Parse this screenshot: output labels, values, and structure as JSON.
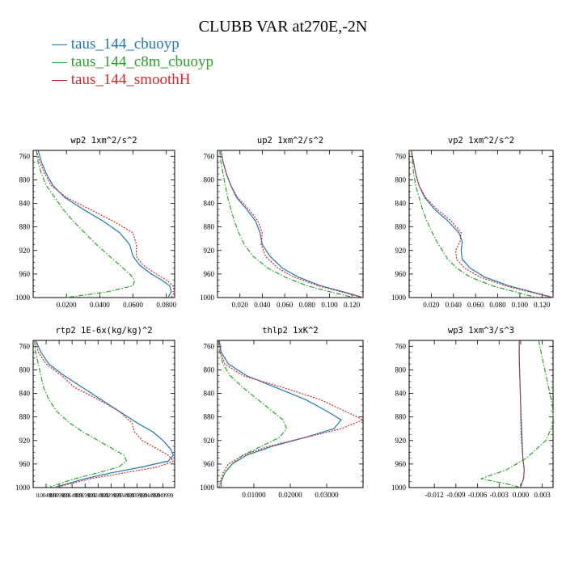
{
  "title": "CLUBB VAR at270E,-2N",
  "legend": [
    {
      "label": "taus_144_cbuoyp",
      "color": "#1f77b4",
      "dash": "solid"
    },
    {
      "label": "taus_144_c8m_cbuoyp",
      "color": "#2ca02c",
      "dash": "dashdot"
    },
    {
      "label": "taus_144_smoothH",
      "color": "#d62728",
      "dash": "dotted"
    }
  ],
  "chart_data": [
    {
      "type": "line",
      "title": "wp2  1xm^2/s^2",
      "xlim": [
        0.0,
        0.085
      ],
      "ylim": [
        1000,
        750
      ],
      "yticks": [
        760,
        800,
        840,
        880,
        920,
        960,
        1000
      ],
      "xticks": [
        0.02,
        0.04,
        0.06,
        0.08
      ],
      "xticklabels": [
        "0.0200",
        "0.0400",
        "0.0600",
        "0.0800"
      ],
      "y": [
        750,
        770,
        790,
        810,
        830,
        850,
        870,
        890,
        910,
        930,
        945,
        960,
        970,
        980,
        990,
        1000
      ],
      "series": [
        {
          "name": "taus_144_cbuoyp",
          "values": [
            0.003,
            0.005,
            0.008,
            0.012,
            0.019,
            0.03,
            0.042,
            0.052,
            0.058,
            0.06,
            0.064,
            0.071,
            0.077,
            0.082,
            0.083,
            0.081
          ]
        },
        {
          "name": "taus_144_c8m_cbuoyp",
          "values": [
            0.002,
            0.003,
            0.005,
            0.008,
            0.013,
            0.018,
            0.024,
            0.031,
            0.038,
            0.046,
            0.052,
            0.058,
            0.061,
            0.06,
            0.045,
            0.02
          ]
        },
        {
          "name": "taus_144_smoothH",
          "values": [
            0.002,
            0.004,
            0.007,
            0.011,
            0.02,
            0.034,
            0.048,
            0.06,
            0.062,
            0.062,
            0.066,
            0.074,
            0.08,
            0.084,
            0.085,
            0.083
          ]
        }
      ]
    },
    {
      "type": "line",
      "title": "up2  1xm^2/s^2",
      "xlim": [
        0.0,
        0.13
      ],
      "ylim": [
        1000,
        750
      ],
      "yticks": [
        760,
        800,
        840,
        880,
        920,
        960,
        1000
      ],
      "xticks": [
        0.02,
        0.04,
        0.06,
        0.08,
        0.1,
        0.12
      ],
      "xticklabels": [
        "0.020",
        "0.040",
        "0.060",
        "0.080",
        "0.100",
        "0.120"
      ],
      "y": [
        750,
        770,
        790,
        810,
        830,
        850,
        870,
        890,
        910,
        930,
        950,
        965,
        980,
        990,
        1000
      ],
      "series": [
        {
          "name": "taus_144_cbuoyp",
          "values": [
            0.003,
            0.005,
            0.008,
            0.012,
            0.017,
            0.026,
            0.034,
            0.038,
            0.04,
            0.047,
            0.058,
            0.072,
            0.092,
            0.112,
            0.13
          ]
        },
        {
          "name": "taus_144_c8m_cbuoyp",
          "values": [
            0.002,
            0.003,
            0.005,
            0.007,
            0.009,
            0.012,
            0.015,
            0.019,
            0.024,
            0.032,
            0.045,
            0.06,
            0.08,
            0.1,
            0.122
          ]
        },
        {
          "name": "taus_144_smoothH",
          "values": [
            0.003,
            0.005,
            0.008,
            0.012,
            0.018,
            0.028,
            0.036,
            0.04,
            0.039,
            0.043,
            0.054,
            0.068,
            0.09,
            0.11,
            0.13
          ]
        }
      ]
    },
    {
      "type": "line",
      "title": "vp2  1xm^2/s^2",
      "xlim": [
        0.0,
        0.13
      ],
      "ylim": [
        1000,
        750
      ],
      "yticks": [
        760,
        800,
        840,
        880,
        920,
        960,
        1000
      ],
      "xticks": [
        0.02,
        0.04,
        0.06,
        0.08,
        0.1,
        0.12
      ],
      "xticklabels": [
        "0.020",
        "0.040",
        "0.060",
        "0.080",
        "0.100",
        "0.120"
      ],
      "y": [
        750,
        770,
        790,
        810,
        830,
        850,
        870,
        890,
        905,
        920,
        935,
        950,
        965,
        980,
        990,
        1000
      ],
      "series": [
        {
          "name": "taus_144_cbuoyp",
          "values": [
            0.002,
            0.004,
            0.006,
            0.009,
            0.014,
            0.023,
            0.035,
            0.045,
            0.048,
            0.047,
            0.048,
            0.055,
            0.068,
            0.09,
            0.11,
            0.13
          ]
        },
        {
          "name": "taus_144_c8m_cbuoyp",
          "values": [
            0.002,
            0.003,
            0.004,
            0.006,
            0.009,
            0.012,
            0.016,
            0.021,
            0.025,
            0.03,
            0.035,
            0.043,
            0.055,
            0.075,
            0.095,
            0.115
          ]
        },
        {
          "name": "taus_144_smoothH",
          "values": [
            0.002,
            0.004,
            0.006,
            0.009,
            0.015,
            0.025,
            0.038,
            0.047,
            0.046,
            0.042,
            0.043,
            0.05,
            0.064,
            0.087,
            0.108,
            0.13
          ]
        }
      ]
    },
    {
      "type": "line",
      "title": "rtp2  1E-6x(kg/kg)^2",
      "xlim": [
        0.0,
        0.0545
      ],
      "ylim": [
        1000,
        750
      ],
      "yticks": [
        760,
        800,
        840,
        880,
        920,
        960,
        1000
      ],
      "xticks": [
        0.004999,
        0.009999,
        0.014999,
        0.019999,
        0.024999,
        0.029999,
        0.034999,
        0.039999,
        0.044999,
        0.049999
      ],
      "xticklabels": [
        "0.004999",
        "0.009999",
        "0.014999",
        "0.019999",
        "0.024999",
        "0.029999",
        "0.034999",
        "0.039999",
        "0.044999",
        "0.049999"
      ],
      "y": [
        750,
        770,
        790,
        810,
        830,
        850,
        870,
        890,
        905,
        920,
        935,
        945,
        955,
        965,
        975,
        985,
        995,
        1000
      ],
      "series": [
        {
          "name": "taus_144_cbuoyp",
          "values": [
            0.001,
            0.003,
            0.006,
            0.012,
            0.019,
            0.026,
            0.033,
            0.04,
            0.046,
            0.05,
            0.053,
            0.054,
            0.052,
            0.042,
            0.03,
            0.02,
            0.012,
            0.008
          ]
        },
        {
          "name": "taus_144_c8m_cbuoyp",
          "values": [
            0.0005,
            0.001,
            0.002,
            0.003,
            0.004,
            0.006,
            0.009,
            0.014,
            0.019,
            0.025,
            0.031,
            0.035,
            0.036,
            0.033,
            0.025,
            0.016,
            0.009,
            0.006
          ]
        },
        {
          "name": "taus_144_smoothH",
          "values": [
            0.001,
            0.002,
            0.005,
            0.011,
            0.016,
            0.025,
            0.033,
            0.038,
            0.039,
            0.042,
            0.048,
            0.052,
            0.054,
            0.048,
            0.035,
            0.022,
            0.013,
            0.009
          ]
        }
      ]
    },
    {
      "type": "line",
      "title": "thlp2  1xK^2",
      "xlim": [
        0.0,
        0.04
      ],
      "ylim": [
        1000,
        750
      ],
      "yticks": [
        760,
        800,
        840,
        880,
        920,
        960,
        1000
      ],
      "xticks": [
        0.01,
        0.02,
        0.03
      ],
      "xticklabels": [
        "0.01000",
        "0.02000",
        "0.03000"
      ],
      "y": [
        750,
        770,
        790,
        810,
        830,
        850,
        870,
        885,
        900,
        915,
        930,
        945,
        960,
        975,
        990,
        1000
      ],
      "series": [
        {
          "name": "taus_144_cbuoyp",
          "values": [
            0.0005,
            0.001,
            0.003,
            0.008,
            0.016,
            0.024,
            0.03,
            0.034,
            0.032,
            0.024,
            0.015,
            0.008,
            0.004,
            0.002,
            0.001,
            0.001
          ]
        },
        {
          "name": "taus_144_c8m_cbuoyp",
          "values": [
            0.0003,
            0.0006,
            0.0015,
            0.0035,
            0.007,
            0.011,
            0.015,
            0.018,
            0.019,
            0.017,
            0.012,
            0.007,
            0.004,
            0.002,
            0.001,
            0.001
          ]
        },
        {
          "name": "taus_144_smoothH",
          "values": [
            0.0003,
            0.0008,
            0.002,
            0.007,
            0.018,
            0.028,
            0.035,
            0.04,
            0.034,
            0.024,
            0.014,
            0.007,
            0.003,
            0.0015,
            0.0008,
            0.0005
          ]
        }
      ]
    },
    {
      "type": "line",
      "title": "wp3  1xm^3/s^3",
      "xlim": [
        -0.0155,
        0.0045
      ],
      "ylim": [
        1000,
        750
      ],
      "yticks": [
        760,
        800,
        840,
        880,
        920,
        960,
        1000
      ],
      "xticks": [
        -0.012,
        -0.009,
        -0.006,
        -0.003,
        0.0,
        0.003
      ],
      "xticklabels": [
        "-0.012",
        "-0.009",
        "-0.006",
        "-0.003",
        "0.000",
        "0.003"
      ],
      "y": [
        750,
        780,
        820,
        860,
        890,
        920,
        950,
        970,
        985,
        995,
        1000
      ],
      "series": [
        {
          "name": "taus_144_cbuoyp",
          "values": [
            -0.0002,
            -0.0002,
            -0.0001,
            0.0,
            0.0001,
            0.0002,
            0.0003,
            0.0005,
            0.0004,
            0.0001,
            0.0
          ]
        },
        {
          "name": "taus_144_c8m_cbuoyp",
          "values": [
            0.0025,
            0.003,
            0.0037,
            0.0044,
            0.0046,
            0.0035,
            0.0008,
            -0.002,
            -0.0055,
            -0.0015,
            0.0
          ]
        },
        {
          "name": "taus_144_smoothH",
          "values": [
            -0.0002,
            -0.0002,
            -0.0001,
            0.0,
            0.0,
            0.0001,
            0.0003,
            0.0005,
            0.0004,
            0.0001,
            0.0
          ]
        }
      ]
    }
  ]
}
